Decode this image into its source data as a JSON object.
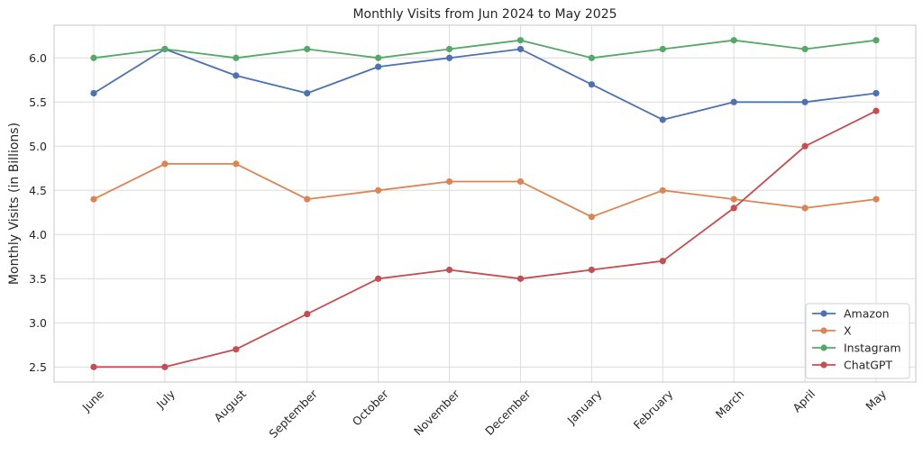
{
  "chart_data": {
    "type": "line",
    "title": "Monthly Visits from Jun 2024 to May 2025",
    "xlabel": "",
    "ylabel": "Monthly Visits (in Billions)",
    "categories": [
      "June",
      "July",
      "August",
      "September",
      "October",
      "November",
      "December",
      "January",
      "February",
      "March",
      "April",
      "May"
    ],
    "ylim": [
      2.33,
      6.37
    ],
    "yticks": [
      2.5,
      3.0,
      3.5,
      4.0,
      4.5,
      5.0,
      5.5,
      6.0
    ],
    "grid": true,
    "legend_position": "lower-right",
    "series": [
      {
        "name": "Amazon",
        "color": "#4c72b0",
        "values": [
          5.6,
          6.1,
          5.8,
          5.6,
          5.9,
          6.0,
          6.1,
          5.7,
          5.3,
          5.5,
          5.5,
          5.6
        ]
      },
      {
        "name": "X",
        "color": "#dd8452",
        "values": [
          4.4,
          4.8,
          4.8,
          4.4,
          4.5,
          4.6,
          4.6,
          4.2,
          4.5,
          4.4,
          4.3,
          4.4
        ]
      },
      {
        "name": "Instagram",
        "color": "#55a868",
        "values": [
          6.0,
          6.1,
          6.0,
          6.1,
          6.0,
          6.1,
          6.2,
          6.0,
          6.1,
          6.2,
          6.1,
          6.2
        ]
      },
      {
        "name": "ChatGPT",
        "color": "#c44e52",
        "values": [
          2.5,
          2.5,
          2.7,
          3.1,
          3.5,
          3.6,
          3.5,
          3.6,
          3.7,
          4.3,
          5.0,
          5.4
        ]
      }
    ]
  }
}
